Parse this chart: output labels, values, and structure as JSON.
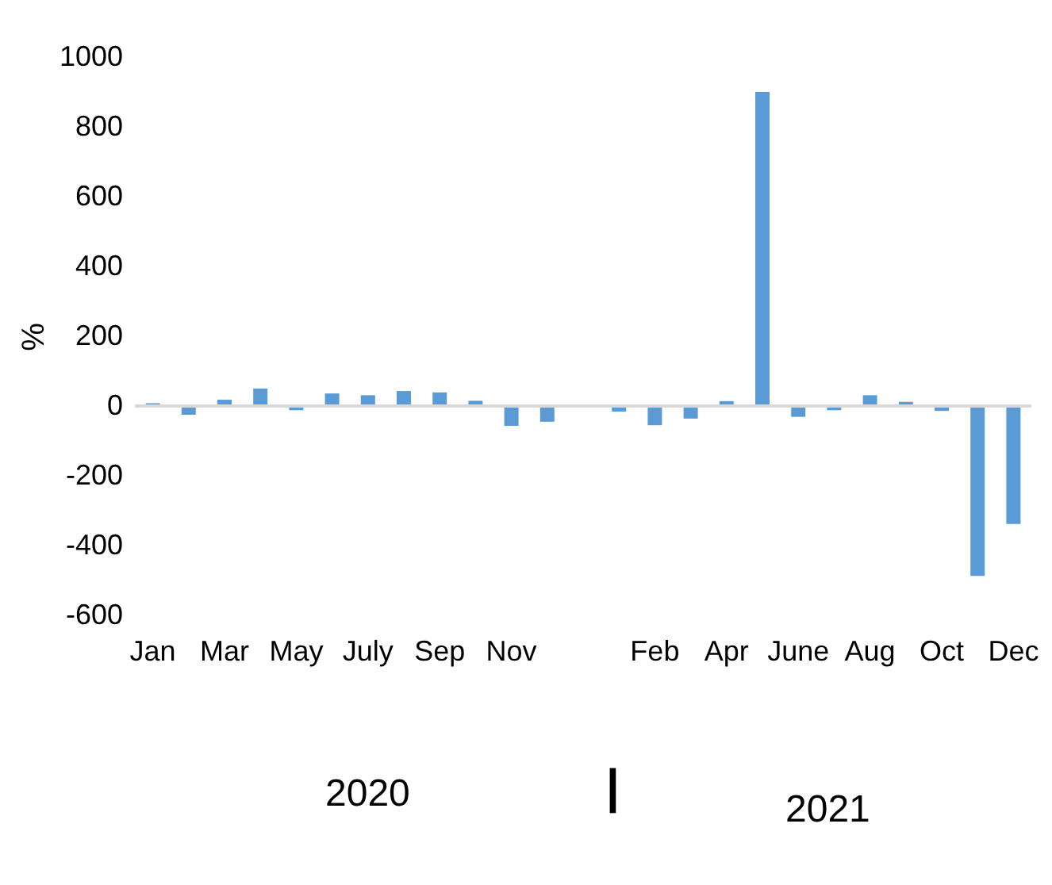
{
  "chart_data": {
    "type": "bar",
    "ylabel": "%",
    "categories": [
      "Jan",
      null,
      "Mar",
      null,
      "May",
      null,
      "July",
      null,
      "Sep",
      null,
      "Nov",
      null,
      null,
      null,
      "Feb",
      null,
      "Apr",
      null,
      "June",
      null,
      "Aug",
      null,
      "Oct",
      null,
      "Dec"
    ],
    "series": [
      {
        "color": "#5b9bd5",
        "values": [
          8,
          -25,
          18,
          50,
          -12,
          36,
          31,
          43,
          39,
          15,
          -57,
          -45,
          null,
          -16,
          -55,
          -36,
          14,
          900,
          -31,
          -12,
          31,
          12,
          -14,
          -487,
          -338
        ]
      }
    ],
    "ylim": [
      -600,
      1000
    ],
    "yticks": [
      -600,
      -400,
      -200,
      0,
      200,
      400,
      600,
      800,
      1000
    ],
    "ref_lines": [
      {
        "axis": "y",
        "value": 0,
        "color": "#d9d9d9"
      }
    ],
    "grid": false,
    "annotations": [
      "2020",
      "|",
      "2021"
    ]
  }
}
